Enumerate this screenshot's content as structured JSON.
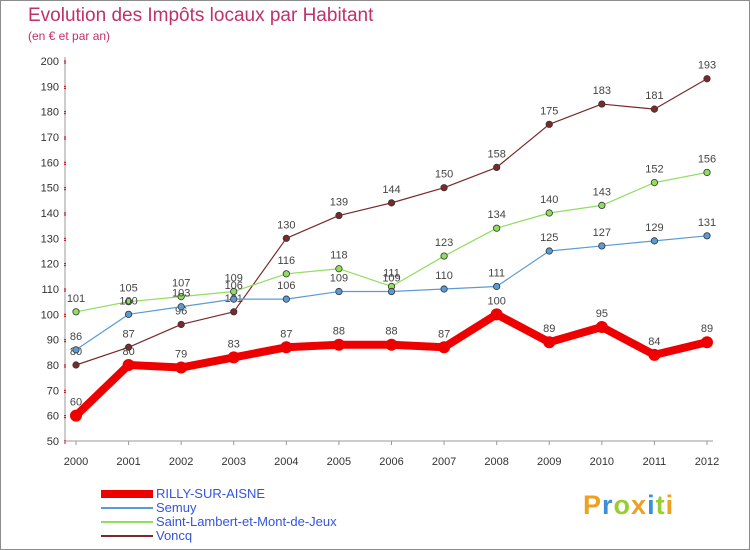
{
  "header": {
    "title": "Evolution des Impôts locaux par Habitant",
    "subtitle": "(en € et par an)"
  },
  "chart_data": {
    "type": "line",
    "x": [
      "2000",
      "2001",
      "2002",
      "2003",
      "2004",
      "2005",
      "2006",
      "2007",
      "2008",
      "2009",
      "2010",
      "2011",
      "2012"
    ],
    "ylim": [
      50,
      200
    ],
    "yticks": [
      50,
      60,
      70,
      80,
      90,
      100,
      110,
      120,
      130,
      140,
      150,
      160,
      170,
      180,
      190,
      200
    ],
    "grid": false,
    "legend_position": "bottom-left",
    "series": [
      {
        "name": "RILLY-SUR-AISNE",
        "color": "#ee0000",
        "values": [
          60,
          80,
          79,
          83,
          87,
          88,
          88,
          87,
          100,
          89,
          95,
          84,
          89
        ]
      },
      {
        "name": "Semuy",
        "color": "#5b9bd5",
        "values": [
          86,
          100,
          103,
          106,
          106,
          109,
          109,
          110,
          111,
          125,
          127,
          129,
          131
        ]
      },
      {
        "name": "Saint-Lambert-et-Mont-de-Jeux",
        "color": "#90dd60",
        "values": [
          101,
          105,
          107,
          109,
          116,
          118,
          111,
          123,
          134,
          140,
          143,
          152,
          156
        ]
      },
      {
        "name": "Voncq",
        "color": "#7a2a2a",
        "values": [
          80,
          87,
          96,
          101,
          130,
          139,
          144,
          150,
          158,
          175,
          183,
          181,
          193
        ]
      }
    ]
  },
  "brand": {
    "letters": [
      "P",
      "r",
      "o",
      "x",
      "i",
      "t",
      "i"
    ],
    "colors": [
      "#f0a020",
      "#3b8fd8",
      "#9acd32",
      "#f0a020",
      "#3b8fd8",
      "#9acd32",
      "#f0a020"
    ]
  }
}
